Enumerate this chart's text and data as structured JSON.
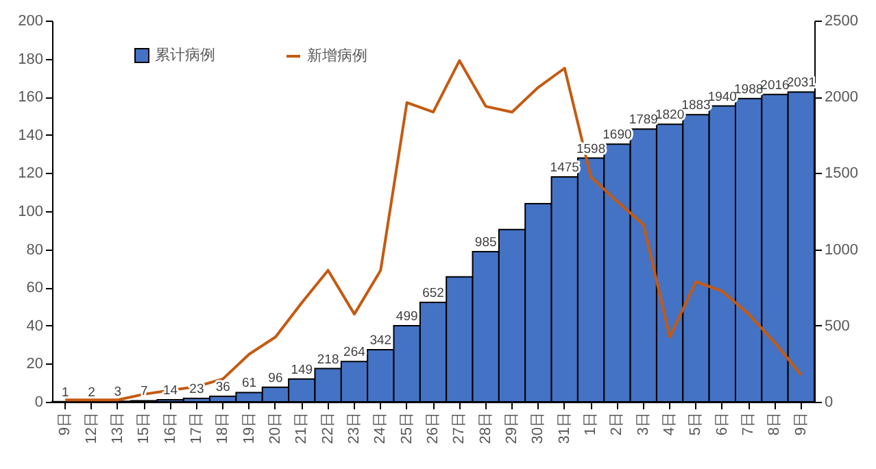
{
  "chart_data": {
    "type": "bar",
    "categories": [
      "9日",
      "12日",
      "13日",
      "15日",
      "16日",
      "17日",
      "18日",
      "19日",
      "20日",
      "21日",
      "22日",
      "23日",
      "24日",
      "25日",
      "26日",
      "27日",
      "28日",
      "29日",
      "30日",
      "31日",
      "1日",
      "2日",
      "3日",
      "4日",
      "5日",
      "6日",
      "7日",
      "8日",
      "9日"
    ],
    "series": [
      {
        "name": "累计病例",
        "axis": "y2",
        "color": "#4472c4",
        "values": [
          1,
          2,
          3,
          7,
          14,
          23,
          36,
          61,
          96,
          149,
          218,
          264,
          342,
          499,
          652,
          820,
          985,
          1130,
          1300,
          1475,
          1598,
          1690,
          1789,
          1820,
          1883,
          1940,
          1988,
          2016,
          2031
        ],
        "value_labels": [
          "1",
          "2",
          "3",
          "7",
          "14",
          "23",
          "36",
          "61",
          "96",
          "149",
          "218",
          "264",
          "342",
          "499",
          "652",
          null,
          "985",
          null,
          null,
          "1475",
          "1598",
          "1690",
          "1789",
          "1820",
          "1883",
          "1940",
          "1988",
          "2016",
          "2031"
        ]
      },
      {
        "name": "新增病例",
        "type": "line",
        "color": "#c55a11",
        "values": [
          1,
          1,
          1,
          4,
          6,
          8,
          12,
          25,
          34,
          52,
          69,
          46,
          69,
          157,
          152,
          179,
          155,
          152,
          165,
          175,
          118,
          105,
          93,
          34,
          63,
          58,
          46,
          31,
          14
        ]
      }
    ],
    "ylim": [
      0,
      200
    ],
    "yticks": [
      0,
      20,
      40,
      60,
      80,
      100,
      120,
      140,
      160,
      180,
      200
    ],
    "y2lim": [
      0,
      2500
    ],
    "y2ticks": [
      0,
      500,
      1000,
      1500,
      2000,
      2500
    ],
    "grid": false,
    "legend": "top left",
    "marker": "none",
    "line_style": "solid"
  }
}
